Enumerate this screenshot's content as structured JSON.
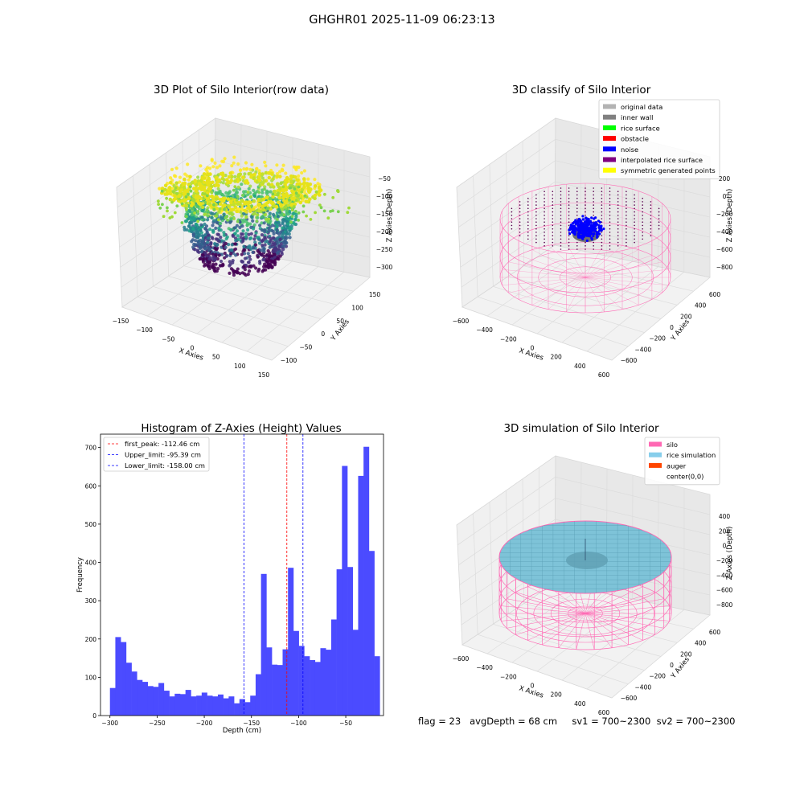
{
  "suptitle": "GHGHR01 2025-11-09 06:23:13",
  "footer": "flag = 23   avgDepth = 68 cm     sv1 = 700~2300  sv2 = 700~2300",
  "chart_data": [
    {
      "type": "scatter",
      "subtype": "3d",
      "title": "3D Plot of Silo Interior(row data)",
      "xlabel": "X Axies",
      "ylabel": "Y Axies",
      "zlabel": "Z Axies (Depth)",
      "xticks": [
        "−150",
        "−100",
        "−50",
        "0",
        "50",
        "100",
        "150"
      ],
      "yticks": [
        "−100",
        "−50",
        "0",
        "50",
        "100",
        "150"
      ],
      "zticks": [
        "−300",
        "−250",
        "−200",
        "−150",
        "−100",
        "−50"
      ],
      "xlim": [
        -150,
        150
      ],
      "ylim": [
        -100,
        150
      ],
      "zlim": [
        -320,
        -30
      ],
      "colormap": "viridis"
    },
    {
      "type": "scatter",
      "subtype": "3d",
      "title": "3D classify of Silo Interior",
      "xlabel": "X Axies",
      "ylabel": "Y Axies",
      "zlabel": "Z Axies (Depth)",
      "xticks": [
        "−600",
        "−400",
        "−200",
        "0",
        "200",
        "400",
        "600"
      ],
      "yticks": [
        "−600",
        "−400",
        "−200",
        "0",
        "200",
        "400",
        "600"
      ],
      "zticks": [
        "−800",
        "−600",
        "−400",
        "−200",
        "0",
        "200"
      ],
      "legend_position": "top-right",
      "legend": [
        {
          "label": "original data",
          "color": "#b3b3b3"
        },
        {
          "label": "inner wall",
          "color": "#808080"
        },
        {
          "label": "rice surface",
          "color": "#00ff00"
        },
        {
          "label": "obstacle",
          "color": "#ff0000"
        },
        {
          "label": "noise",
          "color": "#0000ff"
        },
        {
          "label": "interpolated rice surface",
          "color": "#800080"
        },
        {
          "label": "symmetric generated points",
          "color": "#ffff00"
        }
      ]
    },
    {
      "type": "bar",
      "subtype": "histogram",
      "title": "Histogram of Z-Axies (Height) Values",
      "xlabel": "Depth (cm)",
      "ylabel": "Frequency",
      "xlim": [
        -310,
        -10
      ],
      "ylim": [
        0,
        735
      ],
      "xticks": [
        -300,
        -250,
        -200,
        -150,
        -100,
        -50
      ],
      "yticks": [
        0,
        100,
        200,
        300,
        400,
        500,
        600,
        700
      ],
      "bin_start": -300,
      "bin_width": 5.72,
      "values": [
        72,
        205,
        192,
        138,
        115,
        93,
        88,
        77,
        75,
        85,
        65,
        50,
        57,
        56,
        67,
        50,
        52,
        60,
        52,
        50,
        55,
        45,
        50,
        32,
        43,
        35,
        52,
        108,
        370,
        178,
        133,
        132,
        173,
        386,
        221,
        182,
        155,
        145,
        140,
        176,
        172,
        251,
        382,
        652,
        388,
        224,
        626,
        702,
        430,
        155
      ],
      "bar_color": "#4b4bff",
      "legend_position": "top-left",
      "reference_lines": [
        {
          "label": "first_peak: -112.46 cm",
          "x": -112.46,
          "color": "#ff0000"
        },
        {
          "label": "Upper_limit: -95.39 cm",
          "x": -95.39,
          "color": "#0000ff"
        },
        {
          "label": "Lower_limit: -158.00 cm",
          "x": -158.0,
          "color": "#0000ff"
        }
      ]
    },
    {
      "type": "area",
      "subtype": "3d-surface",
      "title": "3D simulation of Silo Interior",
      "xlabel": "X Axies",
      "ylabel": "Y Axies",
      "zlabel": "Z Axies (Depth)",
      "xticks": [
        "−600",
        "−400",
        "−200",
        "0",
        "200",
        "400",
        "600"
      ],
      "yticks": [
        "−600",
        "−400",
        "−200",
        "0",
        "200",
        "400",
        "600"
      ],
      "zticks": [
        "−800",
        "−600",
        "−400",
        "−200",
        "0",
        "200",
        "400"
      ],
      "legend_position": "top-right",
      "legend": [
        {
          "label": "silo",
          "color": "#ff69b4"
        },
        {
          "label": "rice simulation",
          "color": "#87ceeb"
        },
        {
          "label": "auger",
          "color": "#ff4500"
        },
        {
          "label": "center(0,0)",
          "color": ""
        }
      ]
    }
  ]
}
